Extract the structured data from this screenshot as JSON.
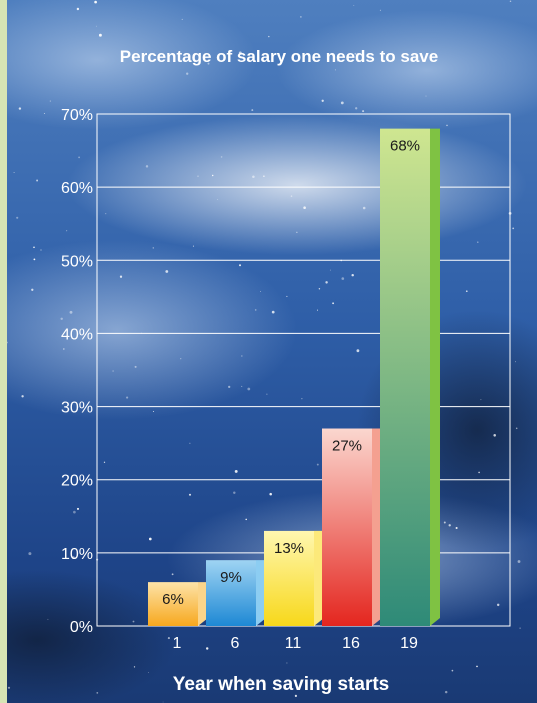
{
  "chart_data": {
    "type": "bar",
    "title": "Percentage of salary one needs to save",
    "xlabel": "Year when saving starts",
    "ylabel": "",
    "categories": [
      "1",
      "6",
      "11",
      "16",
      "19"
    ],
    "values": [
      6,
      9,
      13,
      27,
      68
    ],
    "value_labels": [
      "6%",
      "9%",
      "13%",
      "27%",
      "68%"
    ],
    "ylim": [
      0,
      70
    ],
    "yticks": [
      0,
      10,
      20,
      30,
      40,
      50,
      60,
      70
    ],
    "ytick_labels": [
      "0%",
      "10%",
      "20%",
      "30%",
      "40%",
      "50%",
      "60%",
      "70%"
    ],
    "grid": true,
    "legend": "none",
    "bar_colors": [
      {
        "top": "#fde3a8",
        "bottom": "#f7a81e",
        "side": "#fbd58a"
      },
      {
        "top": "#9fd4f3",
        "bottom": "#1d88d4",
        "side": "#8ccdf2"
      },
      {
        "top": "#fff7b0",
        "bottom": "#f7d81a",
        "side": "#fce97a"
      },
      {
        "top": "#fbd7cf",
        "bottom": "#e4261f",
        "side": "#f4a090"
      },
      {
        "top": "#cfe690",
        "bottom": "#2e8a78",
        "side": "#7fc243"
      }
    ],
    "colors": {
      "background_top": "#4a78b8",
      "background_bottom": "#1b3c78",
      "frame": "#d6e4b4",
      "text": "#ffffff",
      "grid": "#ffffff"
    }
  }
}
